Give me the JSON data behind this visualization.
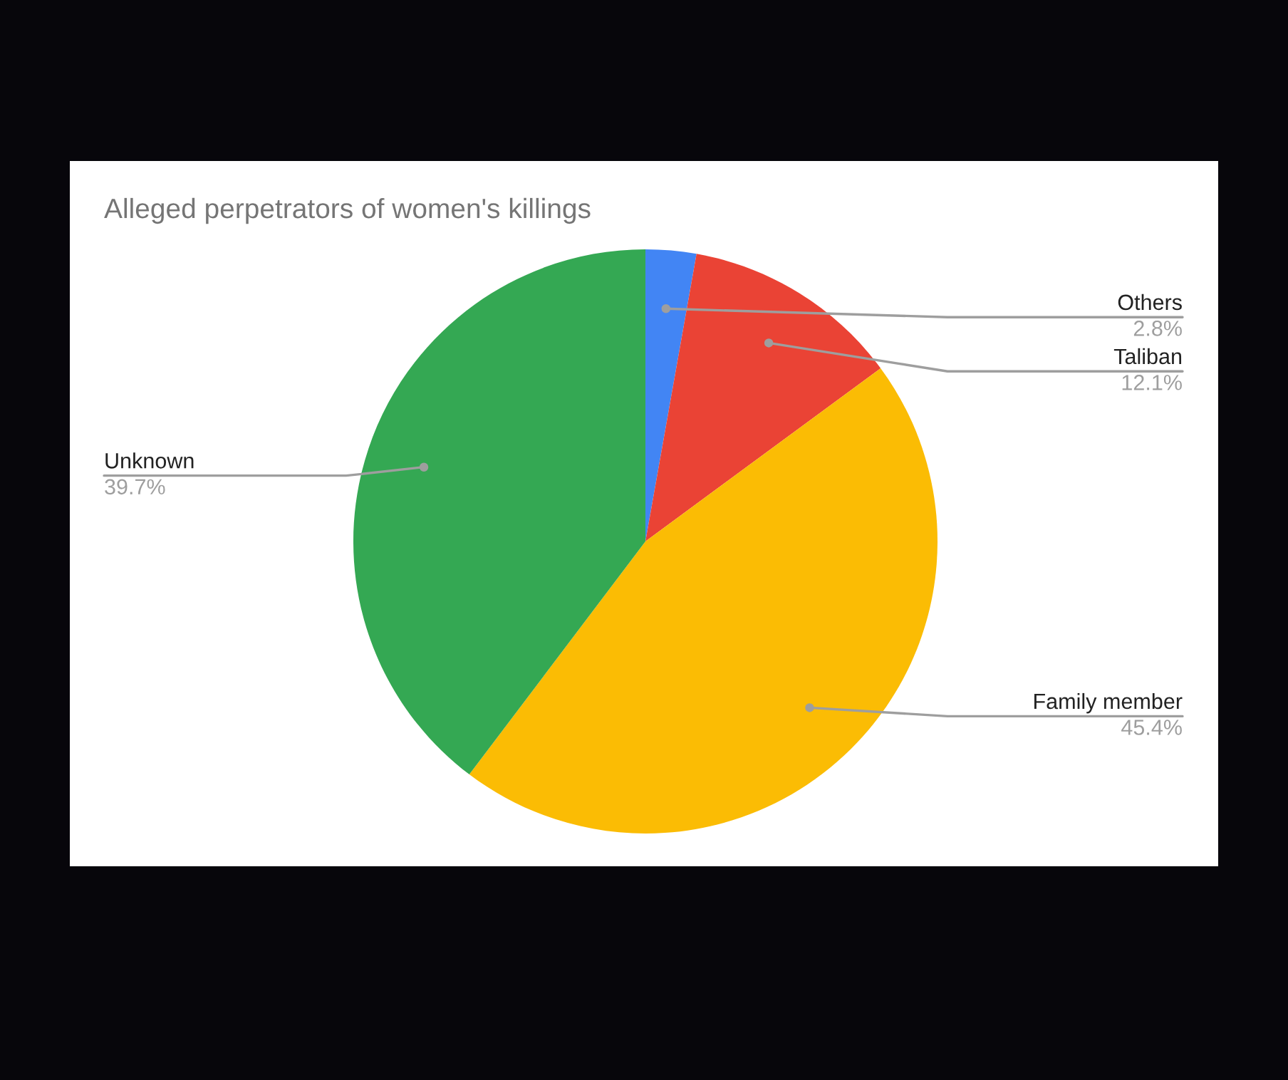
{
  "chart_data": {
    "type": "pie",
    "title": "Alleged perpetrators of women's killings",
    "categories": [
      "Others",
      "Taliban",
      "Family member",
      "Unknown"
    ],
    "values": [
      2.8,
      12.1,
      45.4,
      39.7
    ],
    "value_labels": [
      "2.8%",
      "12.1%",
      "45.4%",
      "39.7%"
    ],
    "colors": [
      "#4285f4",
      "#ea4335",
      "#fbbc04",
      "#34a853"
    ],
    "legend": false
  }
}
